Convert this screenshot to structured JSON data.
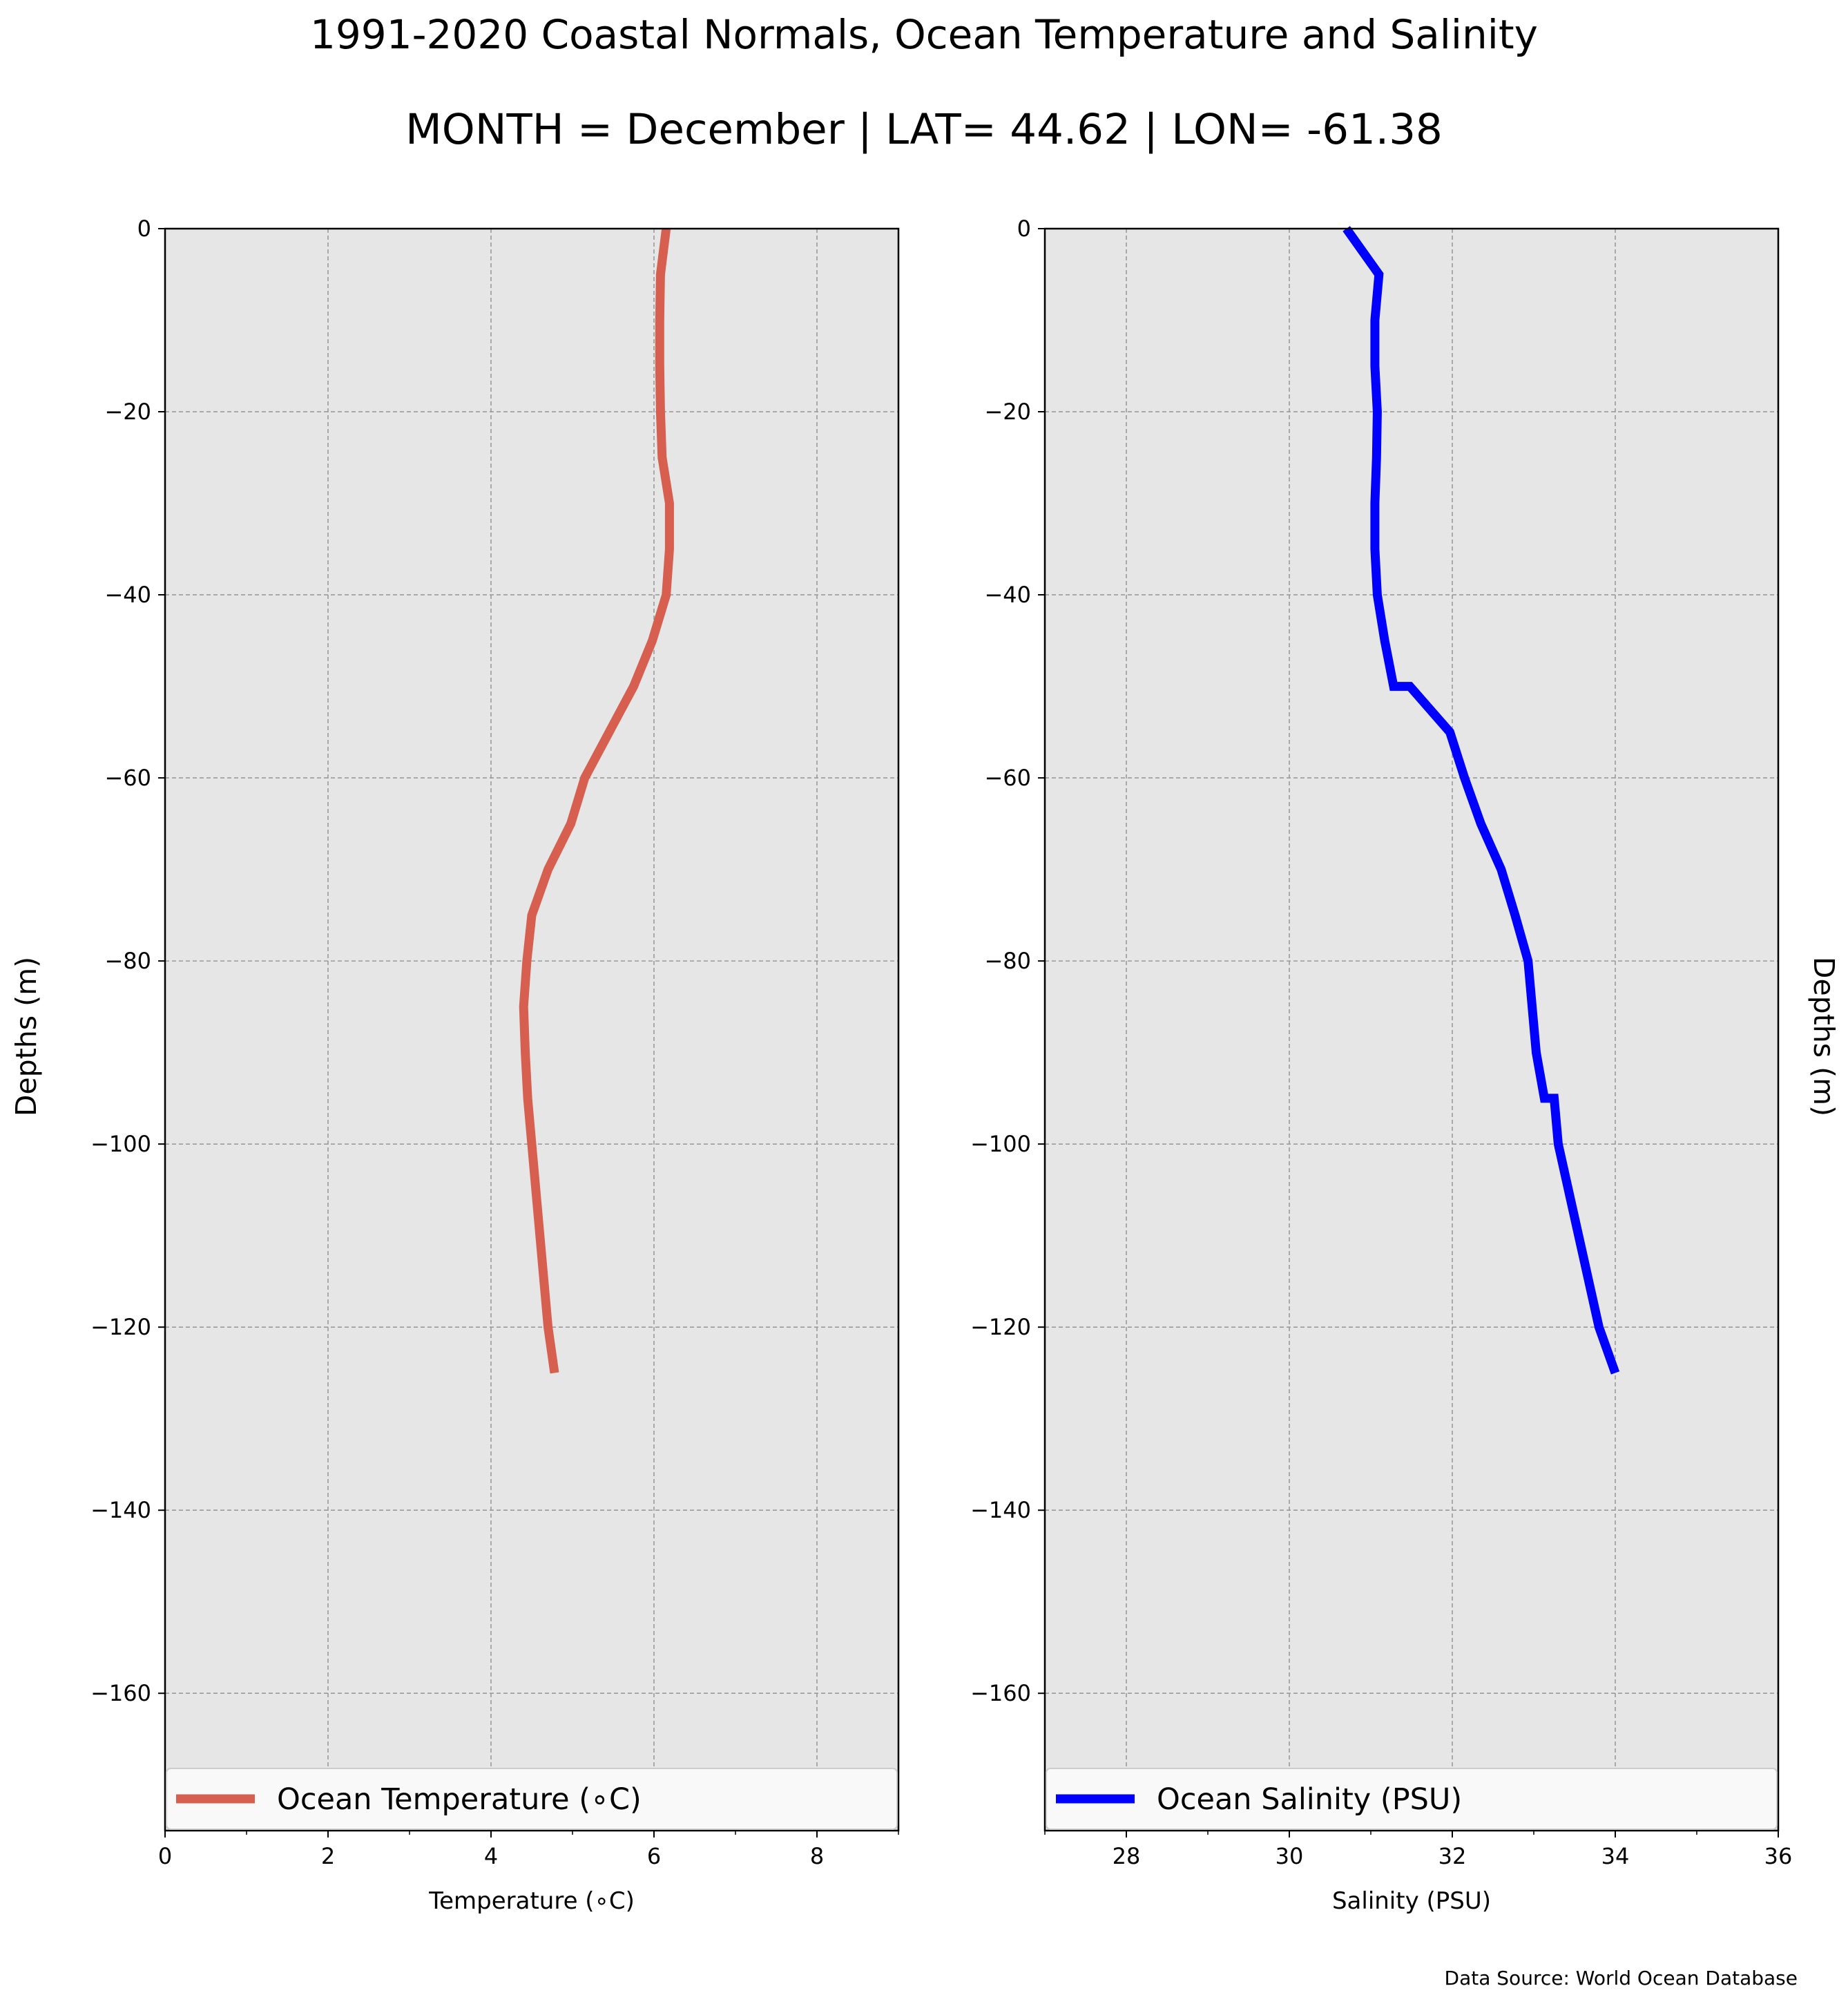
{
  "figure": {
    "title": "1991-2020 Coastal Normals, Ocean Temperature and Salinity",
    "subtitle": "MONTH = December | LAT= 44.62 | LON= -61.38",
    "source": "Data Source: World Ocean Database",
    "background": "#ffffff",
    "panel_color": "#e6e6e6",
    "grid_color": "#9a9a9a"
  },
  "chart_data": [
    {
      "type": "line",
      "xlabel": "Temperature (∘C)",
      "ylabel": "Depths (m)",
      "ylabel_side": "left",
      "xlim": [
        0,
        9
      ],
      "ylim": [
        -175,
        0
      ],
      "xticks": [
        0,
        2,
        4,
        6,
        8
      ],
      "xtick_labels": [
        "0",
        "2",
        "4",
        "6",
        "8"
      ],
      "yticks": [
        0,
        -20,
        -40,
        -60,
        -80,
        -100,
        -120,
        -140,
        -160
      ],
      "ytick_labels": [
        "0",
        "−20",
        "−40",
        "−60",
        "−80",
        "−100",
        "−120",
        "−140",
        "−160"
      ],
      "grid": true,
      "legend_position": "lower center",
      "series": [
        {
          "name": "Ocean Temperature (∘C)",
          "color": "#d65f4f",
          "x": [
            6.15,
            6.08,
            6.07,
            6.07,
            6.08,
            6.1,
            6.19,
            6.19,
            6.15,
            5.98,
            5.75,
            5.45,
            5.15,
            4.98,
            4.7,
            4.5,
            4.44,
            4.4,
            4.42,
            4.45,
            4.5,
            4.6,
            4.7,
            4.78
          ],
          "y": [
            0,
            -5,
            -10,
            -15,
            -20,
            -25,
            -30,
            -35,
            -40,
            -45,
            -50,
            -55,
            -60,
            -65,
            -70,
            -75,
            -80,
            -85,
            -90,
            -95,
            -100,
            -110,
            -120,
            -125
          ]
        }
      ]
    },
    {
      "type": "line",
      "xlabel": "Salinity (PSU)",
      "ylabel": "Depths (m)",
      "ylabel_side": "right",
      "xlim": [
        27,
        36
      ],
      "ylim": [
        -175,
        0
      ],
      "xticks": [
        28,
        30,
        32,
        34,
        36
      ],
      "xtick_labels": [
        "28",
        "30",
        "32",
        "34",
        "36"
      ],
      "yticks": [
        0,
        -20,
        -40,
        -60,
        -80,
        -100,
        -120,
        -140,
        -160
      ],
      "ytick_labels": [
        "0",
        "−20",
        "−40",
        "−60",
        "−80",
        "−100",
        "−120",
        "−140",
        "−160"
      ],
      "grid": true,
      "legend_position": "lower center",
      "series": [
        {
          "name": "Ocean Salinity (PSU)",
          "color": "#0000ff",
          "x": [
            30.7,
            31.1,
            31.05,
            31.05,
            31.08,
            31.07,
            31.05,
            31.05,
            31.08,
            31.17,
            31.28,
            31.48,
            31.97,
            32.15,
            32.35,
            32.6,
            32.77,
            32.93,
            33.03,
            33.13,
            33.25,
            33.3,
            33.55,
            33.8,
            34.0
          ],
          "y": [
            0,
            -5,
            -10,
            -15,
            -20,
            -25,
            -30,
            -35,
            -40,
            -45,
            -50,
            -50,
            -55,
            -60,
            -65,
            -70,
            -75,
            -80,
            -90,
            -95,
            -95,
            -100,
            -110,
            -120,
            -125
          ]
        }
      ]
    }
  ]
}
